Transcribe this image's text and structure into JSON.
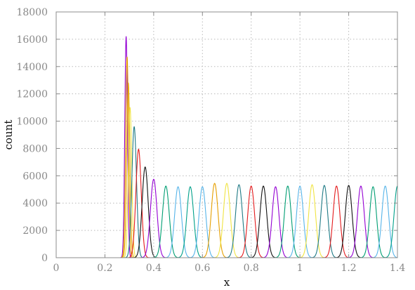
{
  "chart_data": {
    "type": "line",
    "title": "",
    "xlabel": "x",
    "ylabel": "count",
    "xlim": [
      0,
      1.4
    ],
    "ylim": [
      0,
      18000
    ],
    "xticks": [
      0,
      0.2,
      0.4,
      0.6,
      0.8,
      1,
      1.2,
      1.4
    ],
    "xtick_labels": [
      "0",
      "0.2",
      "0.4",
      "0.6",
      "0.8",
      "1",
      "1.2",
      "1.4"
    ],
    "yticks": [
      0,
      2000,
      4000,
      6000,
      8000,
      10000,
      12000,
      14000,
      16000,
      18000
    ],
    "ytick_labels": [
      "0",
      "2000",
      "4000",
      "6000",
      "8000",
      "10000",
      "12000",
      "14000",
      "16000",
      "18000"
    ],
    "grid": true,
    "legend": "none",
    "peak_shape": "gaussian",
    "series": [
      {
        "center": 0.287,
        "peak": 16200,
        "width": 0.0055,
        "color": "#9400d3"
      },
      {
        "center": 0.291,
        "peak": 14700,
        "width": 0.006,
        "color": "#e69f00"
      },
      {
        "center": 0.296,
        "peak": 12800,
        "width": 0.0065,
        "color": "#e6a500"
      },
      {
        "center": 0.303,
        "peak": 11000,
        "width": 0.007,
        "color": "#f0e442"
      },
      {
        "center": 0.32,
        "peak": 9600,
        "width": 0.0095,
        "color": "#1f7a85"
      },
      {
        "center": 0.338,
        "peak": 7950,
        "width": 0.011,
        "color": "#e41a1c"
      },
      {
        "center": 0.365,
        "peak": 6650,
        "width": 0.0125,
        "color": "#111111"
      },
      {
        "center": 0.4,
        "peak": 5750,
        "width": 0.0135,
        "color": "#9400d3"
      },
      {
        "center": 0.45,
        "peak": 5250,
        "width": 0.014,
        "color": "#009e73"
      },
      {
        "center": 0.5,
        "peak": 5200,
        "width": 0.014,
        "color": "#56b4e9"
      },
      {
        "center": 0.55,
        "peak": 5200,
        "width": 0.014,
        "color": "#00a08a"
      },
      {
        "center": 0.6,
        "peak": 5200,
        "width": 0.014,
        "color": "#56b4e9"
      },
      {
        "center": 0.65,
        "peak": 5450,
        "width": 0.014,
        "color": "#e69f00"
      },
      {
        "center": 0.7,
        "peak": 5450,
        "width": 0.014,
        "color": "#f0e442"
      },
      {
        "center": 0.75,
        "peak": 5350,
        "width": 0.014,
        "color": "#1f7a85"
      },
      {
        "center": 0.8,
        "peak": 5250,
        "width": 0.014,
        "color": "#e41a1c"
      },
      {
        "center": 0.85,
        "peak": 5250,
        "width": 0.014,
        "color": "#111111"
      },
      {
        "center": 0.9,
        "peak": 5200,
        "width": 0.014,
        "color": "#9400d3"
      },
      {
        "center": 0.95,
        "peak": 5250,
        "width": 0.014,
        "color": "#009e73"
      },
      {
        "center": 1.0,
        "peak": 5250,
        "width": 0.014,
        "color": "#56b4e9"
      },
      {
        "center": 1.05,
        "peak": 5350,
        "width": 0.014,
        "color": "#f0e442"
      },
      {
        "center": 1.1,
        "peak": 5300,
        "width": 0.014,
        "color": "#1f7a85"
      },
      {
        "center": 1.15,
        "peak": 5250,
        "width": 0.014,
        "color": "#e41a1c"
      },
      {
        "center": 1.2,
        "peak": 5300,
        "width": 0.014,
        "color": "#111111"
      },
      {
        "center": 1.25,
        "peak": 5250,
        "width": 0.014,
        "color": "#9400d3"
      },
      {
        "center": 1.3,
        "peak": 5200,
        "width": 0.014,
        "color": "#009e73"
      },
      {
        "center": 1.35,
        "peak": 5250,
        "width": 0.014,
        "color": "#56b4e9"
      },
      {
        "center": 1.4,
        "peak": 5250,
        "width": 0.014,
        "color": "#00a08a"
      }
    ]
  }
}
